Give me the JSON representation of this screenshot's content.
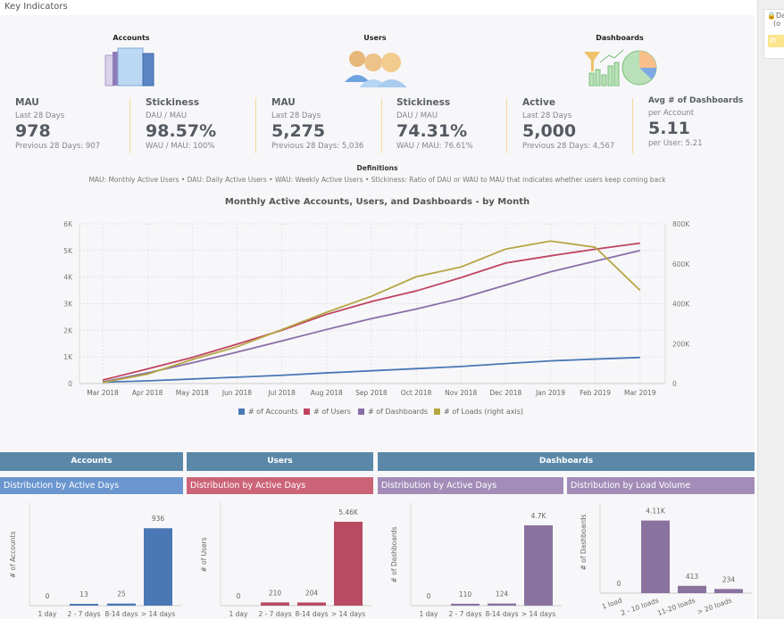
{
  "header": {
    "title": "Key Indicators"
  },
  "right_panel": {
    "card_title": "Da",
    "card_sub": "(o",
    "button_label": "Pr"
  },
  "sections": {
    "accounts": {
      "title": "Accounts",
      "icon": "office-buildings-icon"
    },
    "users": {
      "title": "Users",
      "icon": "users-group-icon"
    },
    "dashboards": {
      "title": "Dashboards",
      "icon": "dashboard-charts-icon"
    }
  },
  "kpis": [
    {
      "heading": "MAU",
      "sub": "Last 28 Days",
      "value": "978",
      "footer": "Previous 28 Days: 907"
    },
    {
      "heading": "Stickiness",
      "sub": "DAU / MAU",
      "value": "98.57%",
      "footer": "WAU / MAU: 100%"
    },
    {
      "heading": "MAU",
      "sub": "Last 28 Days",
      "value": "5,275",
      "footer": "Previous 28 Days: 5,036"
    },
    {
      "heading": "Stickiness",
      "sub": "DAU / MAU",
      "value": "74.31%",
      "footer": "WAU / MAU: 76.61%"
    },
    {
      "heading": "Active",
      "sub": "Last 28 Days",
      "value": "5,000",
      "footer": "Previous 28 Days: 4,567"
    },
    {
      "heading": "Avg # of Dashboards",
      "sub": "per Account",
      "value": "5.11",
      "footer": "per User: 5.21"
    }
  ],
  "definitions": {
    "title": "Definitions",
    "text": "MAU: Monthly Active Users • DAU: Daily Active Users • WAU: Weekly Active Users • Stickiness: Ratio of DAU or WAU to MAU that indicates whether users keep coming back"
  },
  "chart_data": [
    {
      "type": "line",
      "title": "Monthly Active Accounts, Users, and Dashboards - by Month",
      "x": [
        "Mar 2018",
        "Apr 2018",
        "May 2018",
        "Jun 2018",
        "Jul 2018",
        "Aug 2018",
        "Sep 2018",
        "Oct 2018",
        "Nov 2018",
        "Dec 2018",
        "Jan 2019",
        "Feb 2019",
        "Mar 2019"
      ],
      "ylim": [
        0,
        6000
      ],
      "y_ticks": [
        "0",
        "1K",
        "2K",
        "3K",
        "4K",
        "5K",
        "6K"
      ],
      "y2lim": [
        0,
        800000
      ],
      "y2_ticks": [
        "0",
        "200K",
        "400K",
        "600K",
        "800K"
      ],
      "grid": true,
      "legend": "bottom",
      "series": [
        {
          "name": "# of Accounts",
          "color": "#4a78b5",
          "axis": "left",
          "values": [
            50,
            100,
            170,
            240,
            310,
            400,
            480,
            560,
            640,
            750,
            850,
            920,
            978
          ]
        },
        {
          "name": "# of Users",
          "color": "#c0435f",
          "axis": "left",
          "values": [
            130,
            550,
            980,
            1480,
            2000,
            2600,
            3080,
            3480,
            3980,
            4530,
            4800,
            5050,
            5275
          ]
        },
        {
          "name": "# of Dashboards",
          "color": "#8a6ea6",
          "axis": "left",
          "values": [
            60,
            400,
            780,
            1180,
            1600,
            2030,
            2440,
            2800,
            3200,
            3700,
            4200,
            4600,
            5000
          ]
        },
        {
          "name": "# of Loads (right axis)",
          "color": "#b5a642",
          "axis": "right",
          "values": [
            5000,
            47000,
            120000,
            184000,
            270000,
            357000,
            437000,
            535000,
            584000,
            674000,
            714000,
            683000,
            467000
          ]
        }
      ]
    },
    {
      "type": "bar",
      "group": "Accounts",
      "title": "Distribution by Active Days",
      "ylabel": "# of Accounts",
      "color": "#4a78b5",
      "header_color": "#6a95cf",
      "categories": [
        "1 day",
        "2 - 7 days",
        "8-14 days",
        "> 14 days"
      ],
      "values": [
        0,
        13,
        25,
        936
      ],
      "labels": [
        "0",
        "13",
        "25",
        "936"
      ]
    },
    {
      "type": "bar",
      "group": "Users",
      "title": "Distribution by Active Days",
      "ylabel": "# of Users",
      "color": "#b84a62",
      "header_color": "#cc6478",
      "categories": [
        "1 day",
        "2 - 7 days",
        "8-14 days",
        "> 14 days"
      ],
      "values": [
        0,
        210,
        204,
        5460
      ],
      "labels": [
        "0",
        "210",
        "204",
        "5.46K"
      ]
    },
    {
      "type": "bar",
      "group": "Dashboards",
      "title": "Distribution by Active Days",
      "ylabel": "# of Dashboards",
      "color": "#8a729f",
      "header_color": "#a38cb8",
      "categories": [
        "1 day",
        "2 - 7 days",
        "8-14 days",
        "> 14 days"
      ],
      "values": [
        0,
        110,
        124,
        4700
      ],
      "labels": [
        "0",
        "110",
        "124",
        "4.7K"
      ]
    },
    {
      "type": "bar",
      "group": "Dashboards",
      "title": "Distribution by Load Volume",
      "ylabel": "# of Dashboards",
      "color": "#8a729f",
      "header_color": "#a38cb8",
      "categories": [
        "1 load",
        "2 - 10 loads",
        "11-20 loads",
        "> 20 loads"
      ],
      "values": [
        0,
        4110,
        413,
        234
      ],
      "labels": [
        "0",
        "4.11K",
        "413",
        "234"
      ]
    }
  ]
}
